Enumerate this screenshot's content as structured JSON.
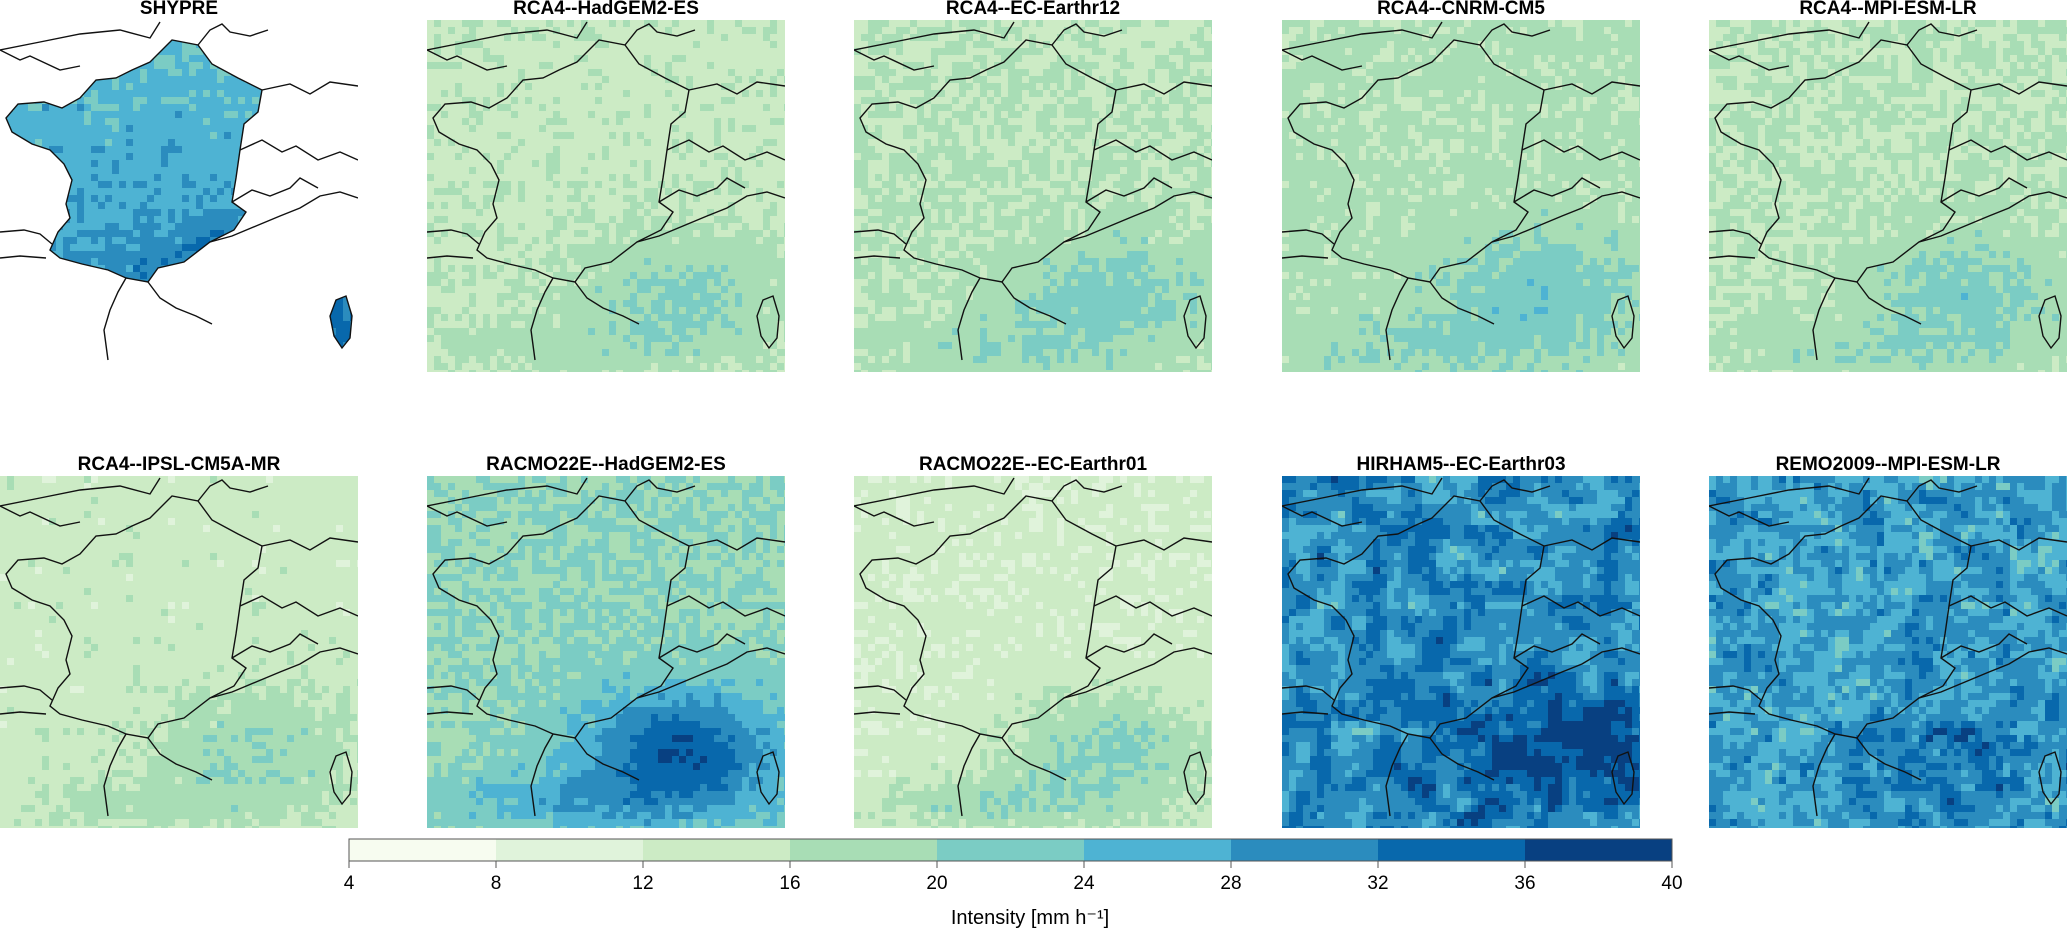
{
  "panels": [
    {
      "title": "SHYPRE",
      "style": "observed",
      "level": 30
    },
    {
      "title": "RCA4--HadGEM2-ES",
      "style": "rca",
      "level": 15
    },
    {
      "title": "RCA4--EC-Earthr12",
      "style": "rca",
      "level": 16
    },
    {
      "title": "RCA4--CNRM-CM5",
      "style": "rca",
      "level": 17
    },
    {
      "title": "RCA4--MPI-ESM-LR",
      "style": "rca",
      "level": 16
    },
    {
      "title": "RCA4--IPSL-CM5A-MR",
      "style": "rca",
      "level": 14
    },
    {
      "title": "RACMO22E--HadGEM2-ES",
      "style": "racmo",
      "level": 20
    },
    {
      "title": "RACMO22E--EC-Earthr01",
      "style": "racmo",
      "level": 13
    },
    {
      "title": "HIRHAM5--EC-Earthr03",
      "style": "hirham",
      "level": 34
    },
    {
      "title": "REMO2009--MPI-ESM-LR",
      "style": "remo",
      "level": 30
    }
  ],
  "colorbar": {
    "ticks": [
      "4",
      "8",
      "12",
      "16",
      "20",
      "24",
      "28",
      "32",
      "36",
      "40"
    ],
    "label": "Intensity [mm h⁻¹]",
    "colors": [
      "#f7fcf0",
      "#e0f3db",
      "#ccebc5",
      "#a8ddb5",
      "#7bccc4",
      "#4eb3d3",
      "#2b8cbe",
      "#0868ac",
      "#084081"
    ]
  }
}
